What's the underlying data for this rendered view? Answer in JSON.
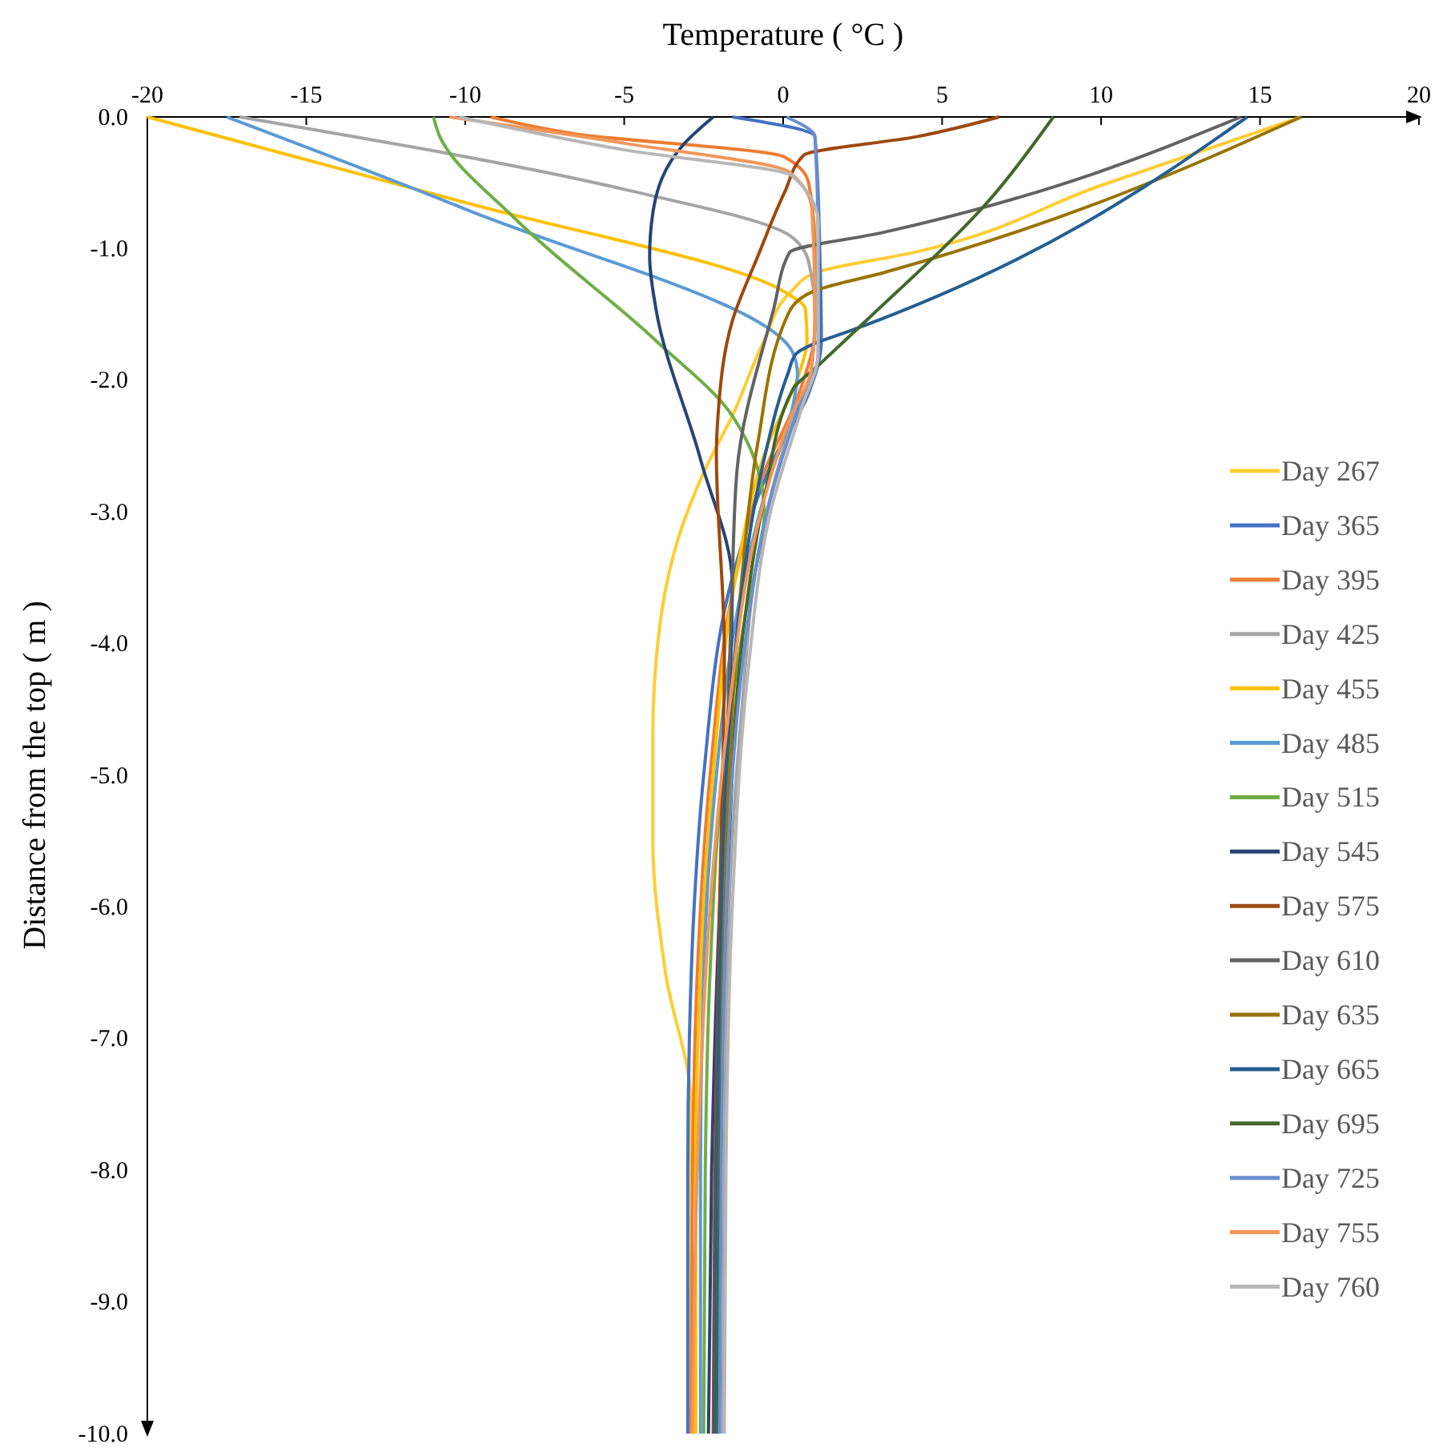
{
  "chart_data": {
    "type": "line",
    "xlabel": "Temperature ( °C )",
    "ylabel": "Distance from the top ( m )",
    "xlim": [
      -20,
      20
    ],
    "ylim": [
      -10,
      0
    ],
    "xticks": [
      -20,
      -15,
      -10,
      -5,
      0,
      5,
      10,
      15,
      20
    ],
    "yticks": [
      {
        "value": 0,
        "label": "0.0"
      },
      {
        "value": -1,
        "label": "-1.0"
      },
      {
        "value": -2,
        "label": "-2.0"
      },
      {
        "value": -3,
        "label": "-3.0"
      },
      {
        "value": -4,
        "label": "-4.0"
      },
      {
        "value": -5,
        "label": "-5.0"
      },
      {
        "value": -6,
        "label": "-6.0"
      },
      {
        "value": -7,
        "label": "-7.0"
      },
      {
        "value": -8,
        "label": "-8.0"
      },
      {
        "value": -9,
        "label": "-9.0"
      },
      {
        "value": -10,
        "label": "-10.0"
      }
    ],
    "legend": "right",
    "series": [
      {
        "name": "Day 267",
        "color": "#ffcd33",
        "x": [
          16.3,
          10,
          4.1,
          1.05,
          0.2,
          -0.6,
          -1.6,
          -2.5,
          -3.3,
          -3.9,
          -4.1,
          -4.1,
          -3.7,
          -2.9,
          -2.9,
          -2.9
        ],
        "values": [
          0,
          -0.52,
          -1.03,
          -1.18,
          -1.34,
          -1.7,
          -2.27,
          -2.7,
          -3.2,
          -3.9,
          -4.7,
          -5.5,
          -6.5,
          -7.5,
          -8.5,
          -10
        ]
      },
      {
        "name": "Day 365",
        "color": "#4472c4",
        "x": [
          -1.6,
          1.0,
          1.15,
          1.2,
          0.8,
          -0.3,
          -1.6,
          -2.5,
          -2.8,
          -2.95,
          -3.0,
          -3.0
        ],
        "values": [
          0,
          -0.15,
          -1.0,
          -1.7,
          -2.1,
          -2.6,
          -3.5,
          -5.0,
          -6.0,
          -7.0,
          -8.0,
          -10
        ]
      },
      {
        "name": "Day 395",
        "color": "#ed7d31",
        "x": [
          -9.2,
          -6.5,
          0,
          0.8,
          1.0,
          1.0,
          0.5,
          -0.6,
          -1.5,
          -2.3,
          -2.7,
          -2.85,
          -2.9
        ],
        "values": [
          0,
          -0.13,
          -0.3,
          -0.5,
          -1.0,
          -1.6,
          -2.1,
          -2.7,
          -3.5,
          -5.0,
          -6.5,
          -8.0,
          -10
        ]
      },
      {
        "name": "Day 425",
        "color": "#a5a5a5",
        "x": [
          -17.1,
          -5,
          0.2,
          0.8,
          1.0,
          0.9,
          0.3,
          -0.7,
          -1.3,
          -1.7,
          -1.85,
          -1.9
        ],
        "values": [
          0,
          -0.55,
          -0.9,
          -1.1,
          -1.5,
          -1.9,
          -2.3,
          -3.2,
          -4.5,
          -6.0,
          -8.0,
          -10
        ]
      },
      {
        "name": "Day 455",
        "color": "#ffc000",
        "x": [
          -20,
          -10,
          0.05,
          0.7,
          0.75,
          0.5,
          -0.5,
          -1.5,
          -2.2,
          -2.6,
          -2.75,
          -2.75
        ],
        "values": [
          0,
          -0.65,
          -1.33,
          -1.46,
          -1.7,
          -1.95,
          -2.5,
          -3.5,
          -5.0,
          -6.5,
          -8.0,
          -10
        ]
      },
      {
        "name": "Day 485",
        "color": "#5b9bd5",
        "x": [
          -17.5,
          -10,
          0.3,
          0.45,
          0.3,
          -0.5,
          -1.4,
          -2.1,
          -2.5,
          -2.6,
          -2.6
        ],
        "values": [
          0,
          -0.7,
          -1.79,
          -1.95,
          -2.2,
          -2.8,
          -3.7,
          -5.0,
          -6.5,
          -8.0,
          -10
        ]
      },
      {
        "name": "Day 515",
        "color": "#70ad47",
        "x": [
          -11,
          -10.8,
          -8.4,
          -4.0,
          -1.6,
          -0.6,
          -1.2,
          -1.9,
          -2.3,
          -2.45,
          -2.5
        ],
        "values": [
          0,
          -0.15,
          -0.78,
          -1.7,
          -2.27,
          -3.0,
          -3.8,
          -5.0,
          -6.5,
          -8.0,
          -10
        ]
      },
      {
        "name": "Day 545",
        "color": "#264478",
        "x": [
          -2.2,
          -3.1,
          -4.1,
          -4.2,
          -4.0,
          -2.6,
          -1.6,
          -1.7,
          -2.0,
          -2.25,
          -2.35
        ],
        "values": [
          0,
          -0.2,
          -0.73,
          -1.06,
          -1.46,
          -2.6,
          -3.55,
          -4.5,
          -6.0,
          -8.0,
          -10
        ]
      },
      {
        "name": "Day 575",
        "color": "#9e480e",
        "x": [
          6.8,
          4.2,
          0.65,
          0.05,
          -0.8,
          -1.6,
          -2.05,
          -2.1,
          -1.85,
          -2.0,
          -2.15,
          -2.2
        ],
        "values": [
          0,
          -0.15,
          -0.29,
          -0.57,
          -1.06,
          -1.55,
          -2.27,
          -2.56,
          -4.06,
          -6.0,
          -8.0,
          -10
        ]
      },
      {
        "name": "Day 610",
        "color": "#636363",
        "x": [
          14.4,
          3.1,
          0.2,
          -0.3,
          -1.45,
          -1.6,
          -1.8,
          -1.95,
          -2.05,
          -2.1
        ],
        "values": [
          0,
          -0.88,
          -1.03,
          -1.46,
          -2.68,
          -3.5,
          -5.0,
          -6.5,
          -8.0,
          -10
        ]
      },
      {
        "name": "Day 635",
        "color": "#997300",
        "x": [
          16.3,
          3.2,
          0.9,
          0.15,
          -0.8,
          -1.3,
          -1.7,
          -1.9,
          -2.0,
          -2.05
        ],
        "values": [
          0,
          -1.18,
          -1.33,
          -1.5,
          -2.48,
          -3.5,
          -5.0,
          -6.5,
          -8.0,
          -10
        ]
      },
      {
        "name": "Day 665",
        "color": "#255e91",
        "x": [
          14.6,
          2.05,
          0.9,
          0.4,
          0.15,
          -0.6,
          -1.4,
          -1.8,
          -2.0,
          -2.1,
          -2.15
        ],
        "values": [
          0,
          -1.63,
          -1.73,
          -1.8,
          -1.95,
          -2.6,
          -3.8,
          -5.0,
          -6.5,
          -8.0,
          -10
        ]
      },
      {
        "name": "Day 695",
        "color": "#43682b",
        "x": [
          8.5,
          6.6,
          2.6,
          1.05,
          0.3,
          -0.6,
          -1.3,
          -1.7,
          -1.95,
          -2.05
        ],
        "values": [
          0,
          -0.6,
          -1.55,
          -1.9,
          -2.07,
          -2.9,
          -4.0,
          -5.5,
          -7.5,
          -10
        ]
      },
      {
        "name": "Day 725",
        "color": "#698ed0",
        "x": [
          0.1,
          1.0,
          1.1,
          1.1,
          0.5,
          -0.4,
          -1.2,
          -1.6,
          -1.85,
          -1.95,
          -2.0
        ],
        "values": [
          0,
          -0.15,
          -1.0,
          -1.8,
          -2.2,
          -2.9,
          -4.0,
          -5.0,
          -6.5,
          -8.0,
          -10
        ]
      },
      {
        "name": "Day 755",
        "color": "#f1975a",
        "x": [
          -10.5,
          -5,
          0.2,
          0.9,
          1.0,
          0.9,
          0.2,
          -0.9,
          -1.7,
          -2.3,
          -2.7,
          -2.85
        ],
        "values": [
          0,
          -0.2,
          -0.42,
          -0.7,
          -1.5,
          -1.9,
          -2.3,
          -3.2,
          -4.5,
          -6.0,
          -8.0,
          -10
        ]
      },
      {
        "name": "Day 760",
        "color": "#b7b7b7",
        "x": [
          -10.2,
          -5,
          0.3,
          1.1,
          1.1,
          0.6,
          -0.4,
          -1.1,
          -1.6,
          -1.8,
          -1.85
        ],
        "values": [
          0,
          -0.25,
          -0.45,
          -0.8,
          -1.8,
          -2.2,
          -3.0,
          -4.2,
          -6.0,
          -8.0,
          -10
        ]
      }
    ]
  }
}
